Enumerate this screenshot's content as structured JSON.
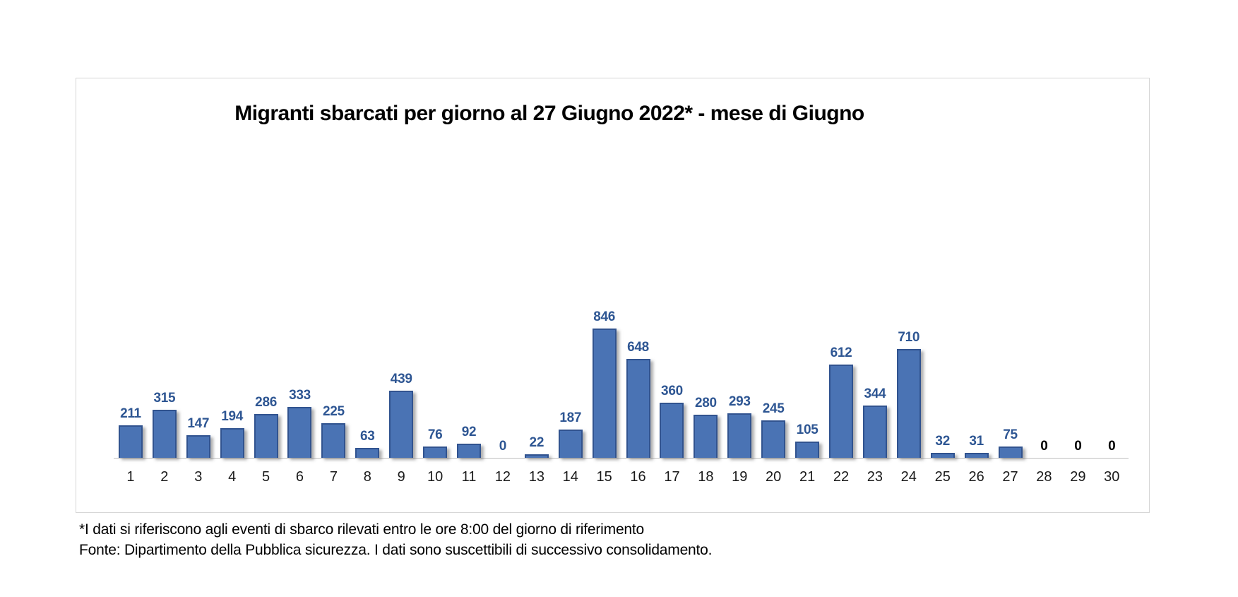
{
  "chart": {
    "title": "Migranti sbarcati per giorno al 27 Giugno 2022* - mese di Giugno",
    "colors": {
      "bar_fill": "#4a73b4",
      "bar_border": "#31538f",
      "data_label": "#2e5693",
      "zero_tail_label": "#000000",
      "axis_line": "#bfbfbf",
      "frame_border": "#d6d6d6",
      "title_text": "#000000"
    }
  },
  "chart_data": {
    "type": "bar",
    "title": "Migranti sbarcati per giorno al 27 Giugno 2022* - mese di Giugno",
    "xlabel": "",
    "ylabel": "",
    "categories": [
      1,
      2,
      3,
      4,
      5,
      6,
      7,
      8,
      9,
      10,
      11,
      12,
      13,
      14,
      15,
      16,
      17,
      18,
      19,
      20,
      21,
      22,
      23,
      24,
      25,
      26,
      27,
      28,
      29,
      30
    ],
    "values": [
      211,
      315,
      147,
      194,
      286,
      333,
      225,
      63,
      439,
      76,
      92,
      0,
      22,
      187,
      846,
      648,
      360,
      280,
      293,
      245,
      105,
      612,
      344,
      710,
      32,
      31,
      75,
      0,
      0,
      0
    ],
    "ylim": [
      0,
      900
    ],
    "grid": false,
    "legend": false,
    "data_labels": true,
    "black_label_days": [
      28,
      29,
      30
    ]
  },
  "footnotes": {
    "line1": "*I dati si riferiscono agli eventi di sbarco rilevati entro le ore 8:00 del giorno di riferimento",
    "line2": "Fonte: Dipartimento della Pubblica sicurezza. I dati sono suscettibili di successivo consolidamento."
  }
}
